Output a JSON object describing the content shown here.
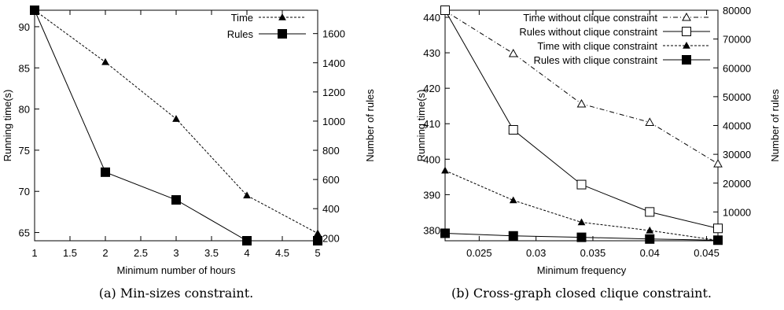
{
  "chart_data": [
    {
      "type": "line",
      "caption": "(a) Min-sizes constraint.",
      "xlabel": "Minimum number of hours",
      "ylabel_left": "Running time(s)",
      "ylabel_right": "Number of rules",
      "xlim": [
        1,
        5
      ],
      "ylim_left": [
        64,
        92
      ],
      "ylim_right": [
        180,
        1760
      ],
      "x_ticks": [
        "1",
        "1.5",
        "2",
        "2.5",
        "3",
        "3.5",
        "4",
        "4.5",
        "5"
      ],
      "y_left_ticks": [
        "65",
        "70",
        "75",
        "80",
        "85",
        "90"
      ],
      "y_right_ticks": [
        "200",
        "400",
        "600",
        "800",
        "1000",
        "1200",
        "1400",
        "1600"
      ],
      "legend_position": "top-right",
      "series": [
        {
          "name": "Time",
          "axis": "left",
          "style": "dotted",
          "marker": "triangle-filled",
          "x": [
            1,
            2,
            3,
            4,
            5
          ],
          "y": [
            92,
            85.7,
            78.8,
            69.5,
            64.9
          ]
        },
        {
          "name": "Rules",
          "axis": "right",
          "style": "solid",
          "marker": "square-filled",
          "x": [
            1,
            2,
            3,
            4,
            5
          ],
          "y": [
            1760,
            650,
            460,
            180,
            180
          ]
        }
      ]
    },
    {
      "type": "line",
      "caption": "(b) Cross-graph closed clique constraint.",
      "xlabel": "Minimum frequency",
      "ylabel_left": "Running time(s)",
      "ylabel_right": "Number of rules",
      "xlim": [
        0.022,
        0.046
      ],
      "ylim_left": [
        377,
        442
      ],
      "ylim_right": [
        0,
        80000
      ],
      "x_ticks": [
        "0.025",
        "0.03",
        "0.035",
        "0.04",
        "0.045"
      ],
      "y_left_ticks": [
        "380",
        "390",
        "400",
        "410",
        "420",
        "430",
        "440"
      ],
      "y_right_ticks": [
        "10000",
        "20000",
        "30000",
        "40000",
        "50000",
        "60000",
        "70000",
        "80000"
      ],
      "legend_position": "top-right",
      "series": [
        {
          "name": "Time without clique constraint",
          "axis": "left",
          "style": "dashdot",
          "marker": "triangle-open",
          "x": [
            0.022,
            0.028,
            0.034,
            0.04,
            0.046
          ],
          "y": [
            441.8,
            429.8,
            415.6,
            410.4,
            398.7
          ]
        },
        {
          "name": "Rules without clique constraint",
          "axis": "right",
          "style": "solid",
          "marker": "square-open",
          "x": [
            0.022,
            0.028,
            0.034,
            0.04,
            0.046
          ],
          "y": [
            80000,
            38500,
            19500,
            10000,
            4300
          ]
        },
        {
          "name": "Time with clique constraint",
          "axis": "left",
          "style": "dotted",
          "marker": "triangle-filled",
          "x": [
            0.022,
            0.028,
            0.034,
            0.04,
            0.046
          ],
          "y": [
            396.8,
            388.4,
            382.2,
            379.9,
            377.1
          ]
        },
        {
          "name": "Rules with clique constraint",
          "axis": "right",
          "style": "solid",
          "marker": "square-filled",
          "x": [
            0.022,
            0.028,
            0.034,
            0.04,
            0.046
          ],
          "y": [
            2600,
            1700,
            1200,
            600,
            200
          ]
        }
      ]
    }
  ]
}
